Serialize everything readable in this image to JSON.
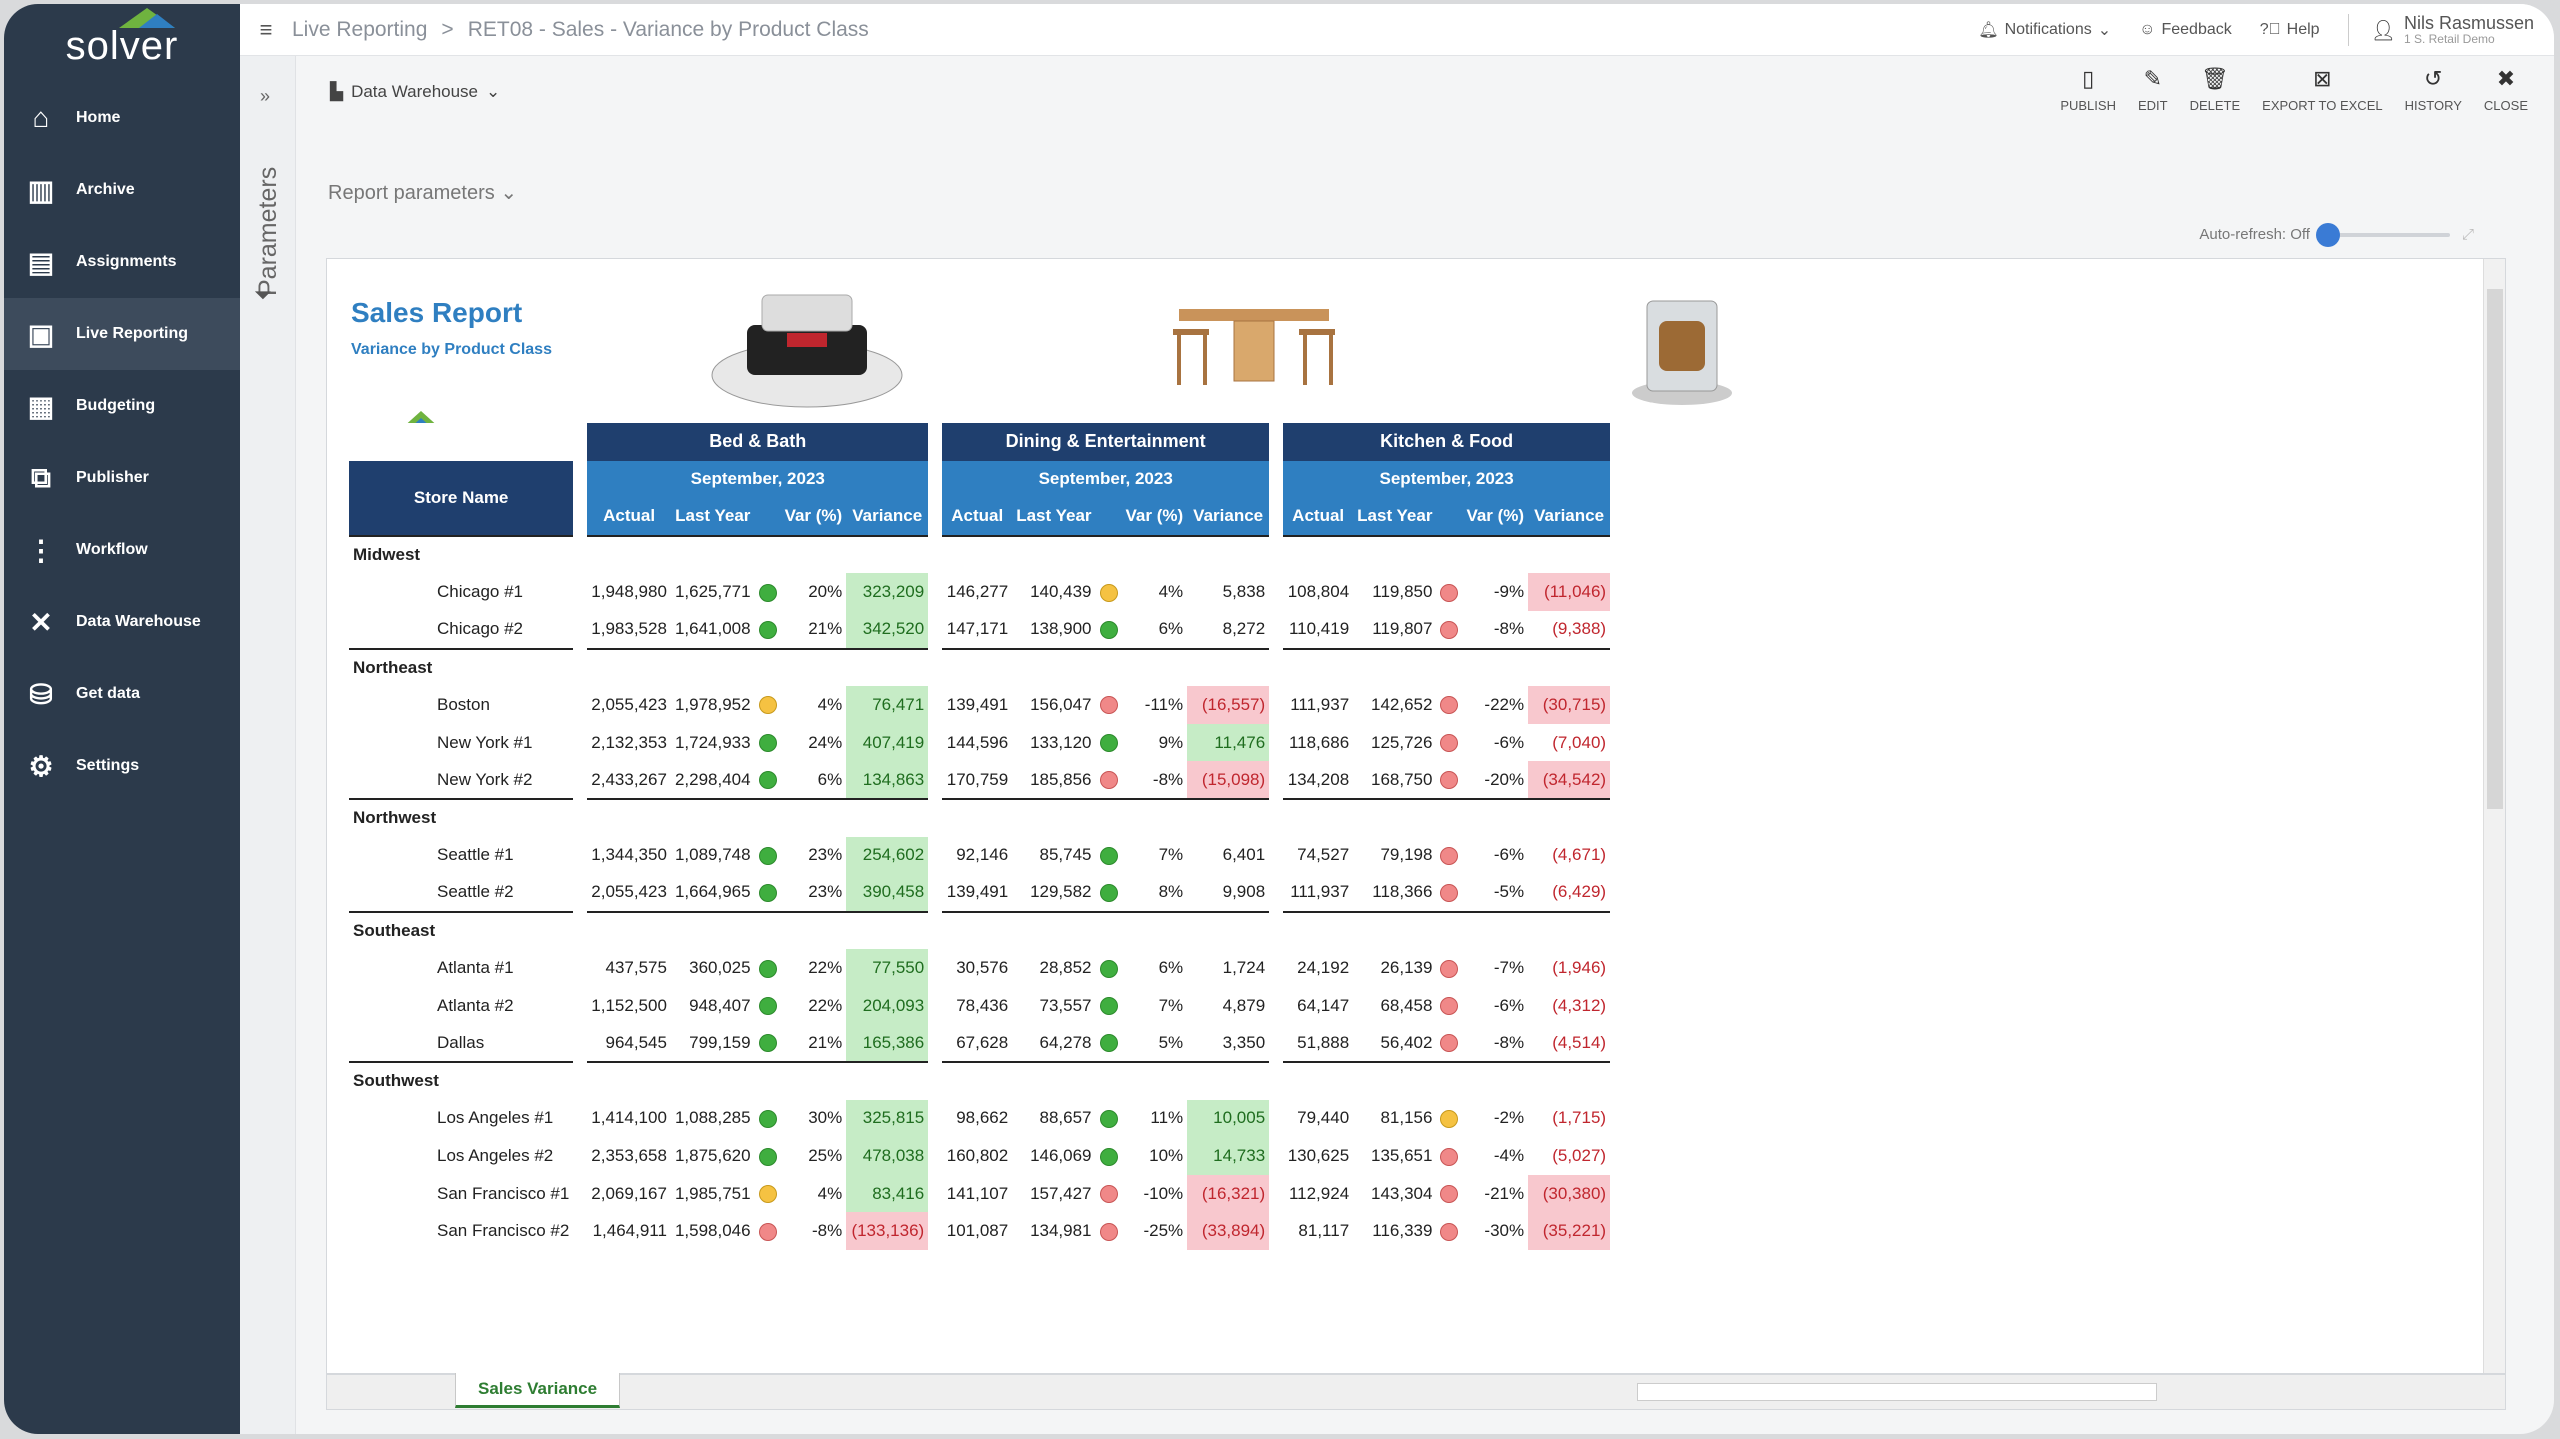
{
  "sidebar": {
    "logo": "solver",
    "items": [
      {
        "label": "Home",
        "icon": "home-icon",
        "glyph": "⌂"
      },
      {
        "label": "Archive",
        "icon": "archive-icon",
        "glyph": "▥"
      },
      {
        "label": "Assignments",
        "icon": "clipboard-icon",
        "glyph": "▤"
      },
      {
        "label": "Live Reporting",
        "icon": "report-icon",
        "glyph": "▣"
      },
      {
        "label": "Budgeting",
        "icon": "calculator-icon",
        "glyph": "▦"
      },
      {
        "label": "Publisher",
        "icon": "publisher-icon",
        "glyph": "⧉"
      },
      {
        "label": "Workflow",
        "icon": "workflow-icon",
        "glyph": "⋮"
      },
      {
        "label": "Data Warehouse",
        "icon": "tools-icon",
        "glyph": "✕"
      },
      {
        "label": "Get data",
        "icon": "database-icon",
        "glyph": "⛁"
      },
      {
        "label": "Settings",
        "icon": "gear-icon",
        "glyph": "⚙"
      }
    ]
  },
  "topbar": {
    "breadcrumb_root": "Live Reporting",
    "breadcrumb_sep": ">",
    "breadcrumb_page": "RET08 - Sales - Variance by Product Class",
    "notifications": "Notifications",
    "feedback": "Feedback",
    "help": "Help",
    "user_name": "Nils Rasmussen",
    "user_sub": "1 S. Retail Demo"
  },
  "params": {
    "label": "Parameters"
  },
  "content": {
    "data_source": "Data Warehouse",
    "report_parameters": "Report parameters",
    "auto_refresh": "Auto-refresh: Off"
  },
  "toolbar": {
    "publish": "PUBLISH",
    "edit": "EDIT",
    "delete": "DELETE",
    "export": "EXPORT TO EXCEL",
    "history": "HISTORY",
    "close": "CLOSE"
  },
  "report": {
    "title": "Sales Report",
    "subtitle": "Variance by Product Class",
    "logo": "solver",
    "store_header": "Store Name",
    "groups": [
      "Bed & Bath",
      "Dining & Entertainment",
      "Kitchen & Food"
    ],
    "period": "September, 2023",
    "columns": [
      "Actual",
      "Last Year",
      "Var (%)",
      "Variance"
    ],
    "regions": [
      {
        "name": "Midwest",
        "stores": [
          {
            "name": "Chicago #1",
            "vals": [
              [
                "1,948,980",
                "1,625,771",
                "g",
                "20%",
                "323,209",
                "pos"
              ],
              [
                "146,277",
                "140,439",
                "y",
                "4%",
                "5,838",
                ""
              ],
              [
                "108,804",
                "119,850",
                "rd",
                "-9%",
                "(11,046)",
                "neg"
              ]
            ]
          },
          {
            "name": "Chicago #2",
            "vals": [
              [
                "1,983,528",
                "1,641,008",
                "g",
                "21%",
                "342,520",
                "pos"
              ],
              [
                "147,171",
                "138,900",
                "g",
                "6%",
                "8,272",
                ""
              ],
              [
                "110,419",
                "119,807",
                "rd",
                "-8%",
                "(9,388)",
                "negt"
              ]
            ]
          }
        ]
      },
      {
        "name": "Northeast",
        "stores": [
          {
            "name": "Boston",
            "vals": [
              [
                "2,055,423",
                "1,978,952",
                "y",
                "4%",
                "76,471",
                "pos"
              ],
              [
                "139,491",
                "156,047",
                "rd",
                "-11%",
                "(16,557)",
                "neg"
              ],
              [
                "111,937",
                "142,652",
                "rd",
                "-22%",
                "(30,715)",
                "neg"
              ]
            ]
          },
          {
            "name": "New York #1",
            "vals": [
              [
                "2,132,353",
                "1,724,933",
                "g",
                "24%",
                "407,419",
                "pos"
              ],
              [
                "144,596",
                "133,120",
                "g",
                "9%",
                "11,476",
                "pos"
              ],
              [
                "118,686",
                "125,726",
                "rd",
                "-6%",
                "(7,040)",
                "negt"
              ]
            ]
          },
          {
            "name": "New York #2",
            "vals": [
              [
                "2,433,267",
                "2,298,404",
                "g",
                "6%",
                "134,863",
                "pos"
              ],
              [
                "170,759",
                "185,856",
                "rd",
                "-8%",
                "(15,098)",
                "neg"
              ],
              [
                "134,208",
                "168,750",
                "rd",
                "-20%",
                "(34,542)",
                "neg"
              ]
            ]
          }
        ]
      },
      {
        "name": "Northwest",
        "stores": [
          {
            "name": "Seattle #1",
            "vals": [
              [
                "1,344,350",
                "1,089,748",
                "g",
                "23%",
                "254,602",
                "pos"
              ],
              [
                "92,146",
                "85,745",
                "g",
                "7%",
                "6,401",
                ""
              ],
              [
                "74,527",
                "79,198",
                "rd",
                "-6%",
                "(4,671)",
                "negt"
              ]
            ]
          },
          {
            "name": "Seattle #2",
            "vals": [
              [
                "2,055,423",
                "1,664,965",
                "g",
                "23%",
                "390,458",
                "pos"
              ],
              [
                "139,491",
                "129,582",
                "g",
                "8%",
                "9,908",
                ""
              ],
              [
                "111,937",
                "118,366",
                "rd",
                "-5%",
                "(6,429)",
                "negt"
              ]
            ]
          }
        ]
      },
      {
        "name": "Southeast",
        "stores": [
          {
            "name": "Atlanta #1",
            "vals": [
              [
                "437,575",
                "360,025",
                "g",
                "22%",
                "77,550",
                "pos"
              ],
              [
                "30,576",
                "28,852",
                "g",
                "6%",
                "1,724",
                ""
              ],
              [
                "24,192",
                "26,139",
                "rd",
                "-7%",
                "(1,946)",
                "negt"
              ]
            ]
          },
          {
            "name": "Atlanta #2",
            "vals": [
              [
                "1,152,500",
                "948,407",
                "g",
                "22%",
                "204,093",
                "pos"
              ],
              [
                "78,436",
                "73,557",
                "g",
                "7%",
                "4,879",
                ""
              ],
              [
                "64,147",
                "68,458",
                "rd",
                "-6%",
                "(4,312)",
                "negt"
              ]
            ]
          },
          {
            "name": "Dallas",
            "vals": [
              [
                "964,545",
                "799,159",
                "g",
                "21%",
                "165,386",
                "pos"
              ],
              [
                "67,628",
                "64,278",
                "g",
                "5%",
                "3,350",
                ""
              ],
              [
                "51,888",
                "56,402",
                "rd",
                "-8%",
                "(4,514)",
                "negt"
              ]
            ]
          }
        ]
      },
      {
        "name": "Southwest",
        "stores": [
          {
            "name": "Los Angeles #1",
            "vals": [
              [
                "1,414,100",
                "1,088,285",
                "g",
                "30%",
                "325,815",
                "pos"
              ],
              [
                "98,662",
                "88,657",
                "g",
                "11%",
                "10,005",
                "pos"
              ],
              [
                "79,440",
                "81,156",
                "y",
                "-2%",
                "(1,715)",
                "negt"
              ]
            ]
          },
          {
            "name": "Los Angeles #2",
            "vals": [
              [
                "2,353,658",
                "1,875,620",
                "g",
                "25%",
                "478,038",
                "pos"
              ],
              [
                "160,802",
                "146,069",
                "g",
                "10%",
                "14,733",
                "pos"
              ],
              [
                "130,625",
                "135,651",
                "rd",
                "-4%",
                "(5,027)",
                "negt"
              ]
            ]
          },
          {
            "name": "San Francisco #1",
            "vals": [
              [
                "2,069,167",
                "1,985,751",
                "y",
                "4%",
                "83,416",
                "pos"
              ],
              [
                "141,107",
                "157,427",
                "rd",
                "-10%",
                "(16,321)",
                "neg"
              ],
              [
                "112,924",
                "143,304",
                "rd",
                "-21%",
                "(30,380)",
                "neg"
              ]
            ]
          },
          {
            "name": "San Francisco #2",
            "vals": [
              [
                "1,464,911",
                "1,598,046",
                "rd",
                "-8%",
                "(133,136)",
                "neg"
              ],
              [
                "101,087",
                "134,981",
                "rd",
                "-25%",
                "(33,894)",
                "neg"
              ],
              [
                "81,117",
                "116,339",
                "rd",
                "-30%",
                "(35,221)",
                "neg"
              ]
            ]
          }
        ]
      }
    ]
  },
  "sheet_tab": "Sales Variance"
}
